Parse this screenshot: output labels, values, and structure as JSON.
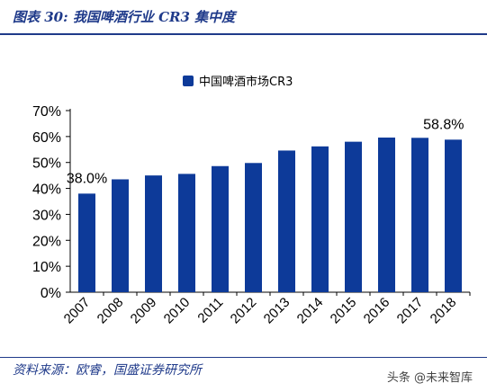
{
  "header": {
    "title": "图表 30:  我国啤酒行业 CR3 集中度"
  },
  "footer": {
    "source": "资料来源：欧睿，国盛证券研究所",
    "watermark": "头条 @未来智库"
  },
  "colors": {
    "bar": "#0d3a99",
    "brand": "#1f3a8a",
    "axis": "#000000"
  },
  "chart_data": {
    "type": "bar",
    "categories": [
      "2007",
      "2008",
      "2009",
      "2010",
      "2011",
      "2012",
      "2013",
      "2014",
      "2015",
      "2016",
      "2017",
      "2018"
    ],
    "series": [
      {
        "name": "中国啤酒市场CR3",
        "values": [
          38.0,
          43.5,
          45.0,
          45.6,
          48.6,
          49.8,
          54.6,
          56.2,
          58.0,
          59.6,
          59.5,
          58.8
        ]
      }
    ],
    "ylim": [
      0,
      70
    ],
    "yticks": [
      0,
      10,
      20,
      30,
      40,
      50,
      60,
      70
    ],
    "ytick_labels": [
      "0%",
      "10%",
      "20%",
      "30%",
      "40%",
      "50%",
      "60%",
      "70%"
    ],
    "data_labels": [
      {
        "category": "2007",
        "text": "38.0%"
      },
      {
        "category": "2018",
        "text": "58.8%"
      }
    ],
    "legend": "top-center",
    "grid": false
  }
}
